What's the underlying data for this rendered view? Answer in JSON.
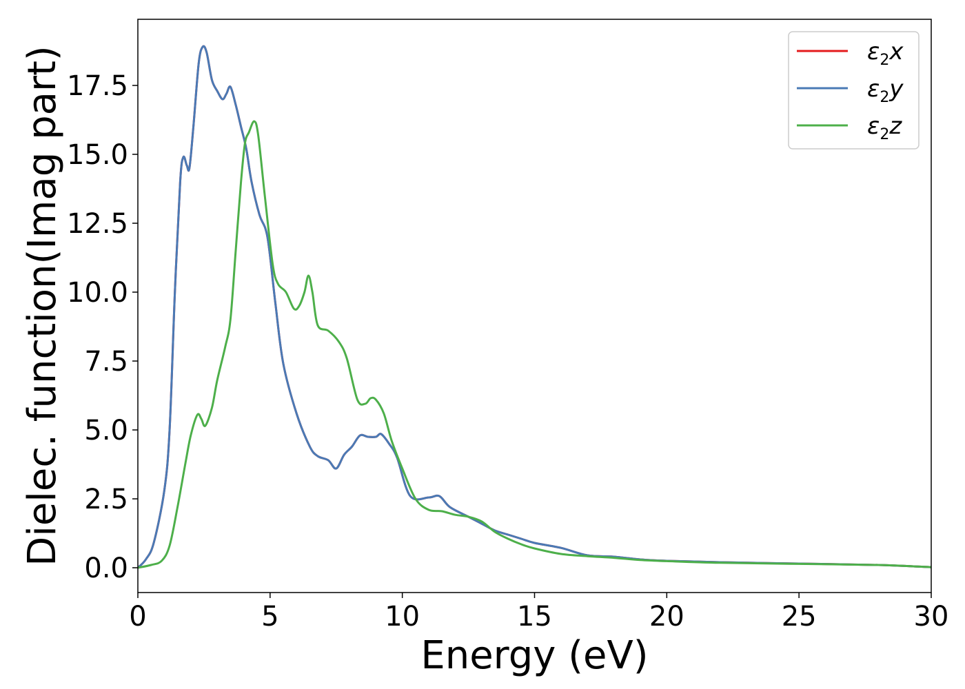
{
  "chart_data": {
    "type": "line",
    "xlabel": "Energy (eV)",
    "ylabel": "Dielec. function(Imag part)",
    "xlim": [
      0,
      30
    ],
    "ylim": [
      -0.9,
      19.9
    ],
    "x_ticks": [
      0,
      5,
      10,
      15,
      20,
      25,
      30
    ],
    "y_ticks": [
      0.0,
      2.5,
      5.0,
      7.5,
      10.0,
      12.5,
      15.0,
      17.5
    ],
    "grid": false,
    "legend_position": "top-right",
    "series": [
      {
        "name": "ε2x",
        "legend": {
          "symbol": "ε",
          "sub": "2",
          "var": "x"
        },
        "color": "#e41a1c",
        "points": [
          [
            0,
            0
          ],
          [
            0.3,
            0.3
          ],
          [
            0.6,
            0.9
          ],
          [
            1.0,
            2.8
          ],
          [
            1.2,
            5.0
          ],
          [
            1.4,
            10.0
          ],
          [
            1.6,
            14.0
          ],
          [
            1.72,
            14.9
          ],
          [
            1.85,
            14.6
          ],
          [
            1.95,
            14.5
          ],
          [
            2.1,
            16.0
          ],
          [
            2.3,
            18.3
          ],
          [
            2.45,
            18.9
          ],
          [
            2.6,
            18.7
          ],
          [
            2.8,
            17.7
          ],
          [
            3.0,
            17.3
          ],
          [
            3.2,
            17.0
          ],
          [
            3.35,
            17.2
          ],
          [
            3.5,
            17.45
          ],
          [
            3.7,
            16.8
          ],
          [
            3.9,
            16.0
          ],
          [
            4.1,
            15.2
          ],
          [
            4.3,
            14.0
          ],
          [
            4.6,
            12.8
          ],
          [
            4.9,
            12.0
          ],
          [
            5.2,
            9.6
          ],
          [
            5.5,
            7.4
          ],
          [
            6.0,
            5.6
          ],
          [
            6.5,
            4.4
          ],
          [
            6.8,
            4.05
          ],
          [
            7.2,
            3.9
          ],
          [
            7.5,
            3.6
          ],
          [
            7.8,
            4.1
          ],
          [
            8.1,
            4.4
          ],
          [
            8.4,
            4.8
          ],
          [
            8.7,
            4.75
          ],
          [
            9.0,
            4.75
          ],
          [
            9.2,
            4.85
          ],
          [
            9.5,
            4.5
          ],
          [
            9.8,
            4.0
          ],
          [
            10.3,
            2.6
          ],
          [
            11.0,
            2.55
          ],
          [
            11.4,
            2.6
          ],
          [
            11.8,
            2.2
          ],
          [
            12.5,
            1.85
          ],
          [
            13.0,
            1.6
          ],
          [
            13.5,
            1.35
          ],
          [
            14.0,
            1.2
          ],
          [
            14.5,
            1.05
          ],
          [
            15.0,
            0.9
          ],
          [
            16.0,
            0.72
          ],
          [
            17.0,
            0.45
          ],
          [
            18.0,
            0.4
          ],
          [
            19.0,
            0.3
          ],
          [
            20.0,
            0.25
          ],
          [
            22.0,
            0.2
          ],
          [
            25.0,
            0.15
          ],
          [
            28.0,
            0.1
          ],
          [
            30.0,
            0.02
          ]
        ]
      },
      {
        "name": "ε2y",
        "legend": {
          "symbol": "ε",
          "sub": "2",
          "var": "y"
        },
        "color": "#4a7ab5",
        "points": [
          [
            0,
            0
          ],
          [
            0.3,
            0.3
          ],
          [
            0.6,
            0.9
          ],
          [
            1.0,
            2.8
          ],
          [
            1.2,
            5.0
          ],
          [
            1.4,
            10.0
          ],
          [
            1.6,
            14.0
          ],
          [
            1.72,
            14.9
          ],
          [
            1.85,
            14.6
          ],
          [
            1.95,
            14.5
          ],
          [
            2.1,
            16.0
          ],
          [
            2.3,
            18.3
          ],
          [
            2.45,
            18.9
          ],
          [
            2.6,
            18.7
          ],
          [
            2.8,
            17.7
          ],
          [
            3.0,
            17.3
          ],
          [
            3.2,
            17.0
          ],
          [
            3.35,
            17.2
          ],
          [
            3.5,
            17.45
          ],
          [
            3.7,
            16.8
          ],
          [
            3.9,
            16.0
          ],
          [
            4.1,
            15.2
          ],
          [
            4.3,
            14.0
          ],
          [
            4.6,
            12.8
          ],
          [
            4.9,
            12.0
          ],
          [
            5.2,
            9.6
          ],
          [
            5.5,
            7.4
          ],
          [
            6.0,
            5.6
          ],
          [
            6.5,
            4.4
          ],
          [
            6.8,
            4.05
          ],
          [
            7.2,
            3.9
          ],
          [
            7.5,
            3.6
          ],
          [
            7.8,
            4.1
          ],
          [
            8.1,
            4.4
          ],
          [
            8.4,
            4.8
          ],
          [
            8.7,
            4.75
          ],
          [
            9.0,
            4.75
          ],
          [
            9.2,
            4.85
          ],
          [
            9.5,
            4.5
          ],
          [
            9.8,
            4.0
          ],
          [
            10.3,
            2.6
          ],
          [
            11.0,
            2.55
          ],
          [
            11.4,
            2.6
          ],
          [
            11.8,
            2.2
          ],
          [
            12.5,
            1.85
          ],
          [
            13.0,
            1.6
          ],
          [
            13.5,
            1.35
          ],
          [
            14.0,
            1.2
          ],
          [
            14.5,
            1.05
          ],
          [
            15.0,
            0.9
          ],
          [
            16.0,
            0.72
          ],
          [
            17.0,
            0.45
          ],
          [
            18.0,
            0.4
          ],
          [
            19.0,
            0.3
          ],
          [
            20.0,
            0.25
          ],
          [
            22.0,
            0.2
          ],
          [
            25.0,
            0.15
          ],
          [
            28.0,
            0.1
          ],
          [
            30.0,
            0.02
          ]
        ]
      },
      {
        "name": "ε2z",
        "legend": {
          "symbol": "ε",
          "sub": "2",
          "var": "z"
        },
        "color": "#4daf4a",
        "points": [
          [
            0,
            0
          ],
          [
            0.5,
            0.1
          ],
          [
            0.9,
            0.25
          ],
          [
            1.2,
            0.8
          ],
          [
            1.5,
            2.2
          ],
          [
            1.8,
            3.8
          ],
          [
            2.0,
            4.8
          ],
          [
            2.25,
            5.55
          ],
          [
            2.4,
            5.4
          ],
          [
            2.55,
            5.15
          ],
          [
            2.8,
            5.8
          ],
          [
            3.0,
            6.8
          ],
          [
            3.3,
            8.0
          ],
          [
            3.5,
            9.0
          ],
          [
            3.7,
            11.5
          ],
          [
            3.9,
            14.0
          ],
          [
            4.05,
            15.4
          ],
          [
            4.2,
            15.8
          ],
          [
            4.4,
            16.2
          ],
          [
            4.55,
            15.7
          ],
          [
            4.8,
            13.5
          ],
          [
            5.1,
            11.0
          ],
          [
            5.3,
            10.3
          ],
          [
            5.6,
            10.0
          ],
          [
            5.9,
            9.4
          ],
          [
            6.1,
            9.5
          ],
          [
            6.3,
            10.0
          ],
          [
            6.45,
            10.6
          ],
          [
            6.6,
            10.0
          ],
          [
            6.8,
            8.8
          ],
          [
            7.2,
            8.6
          ],
          [
            7.6,
            8.2
          ],
          [
            7.9,
            7.6
          ],
          [
            8.3,
            6.1
          ],
          [
            8.6,
            5.95
          ],
          [
            8.8,
            6.15
          ],
          [
            9.0,
            6.1
          ],
          [
            9.3,
            5.6
          ],
          [
            9.6,
            4.6
          ],
          [
            10.0,
            3.6
          ],
          [
            10.5,
            2.5
          ],
          [
            11.0,
            2.1
          ],
          [
            11.5,
            2.05
          ],
          [
            12.0,
            1.92
          ],
          [
            12.5,
            1.85
          ],
          [
            13.0,
            1.68
          ],
          [
            13.5,
            1.3
          ],
          [
            14.0,
            1.05
          ],
          [
            14.5,
            0.85
          ],
          [
            15.0,
            0.7
          ],
          [
            16.0,
            0.5
          ],
          [
            17.0,
            0.42
          ],
          [
            18.0,
            0.36
          ],
          [
            19.0,
            0.28
          ],
          [
            20.0,
            0.24
          ],
          [
            22.0,
            0.18
          ],
          [
            25.0,
            0.14
          ],
          [
            28.0,
            0.1
          ],
          [
            30.0,
            0.02
          ]
        ]
      }
    ]
  }
}
